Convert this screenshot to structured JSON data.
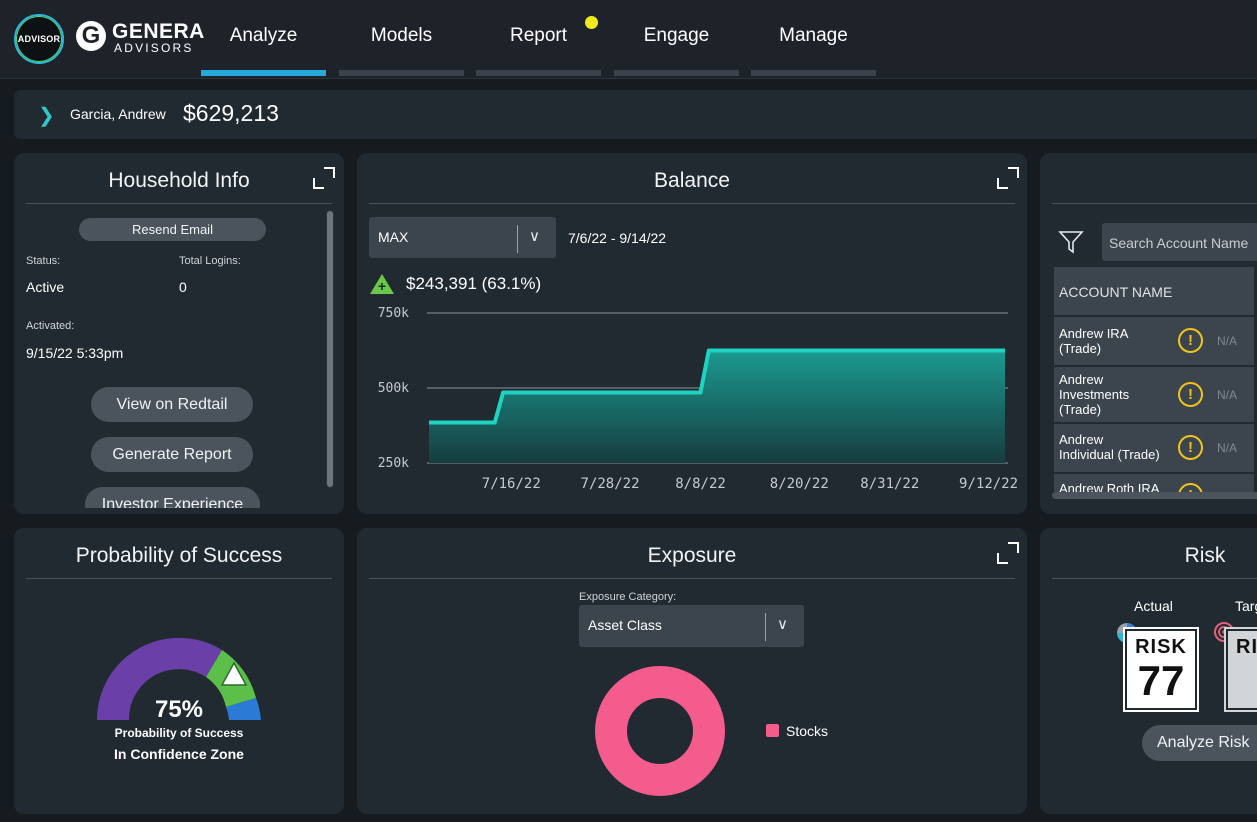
{
  "brand": {
    "advisor_badge": "ADVISOR",
    "logo_letter": "G",
    "name": "GENERA",
    "sub": "ADVISORS"
  },
  "nav": {
    "tabs": [
      {
        "label": "Analyze",
        "active": true
      },
      {
        "label": "Models",
        "active": false
      },
      {
        "label": "Report",
        "active": false,
        "notification": true
      },
      {
        "label": "Engage",
        "active": false
      },
      {
        "label": "Manage",
        "active": false
      }
    ]
  },
  "client": {
    "name": "Garcia, Andrew",
    "total_value": "$629,213"
  },
  "household": {
    "title": "Household Info",
    "resend_label": "Resend Email",
    "status_label": "Status:",
    "status_value": "Active",
    "logins_label": "Total Logins:",
    "logins_value": "0",
    "activated_label": "Activated:",
    "activated_value": "9/15/22 5:33pm",
    "buttons": [
      "View on Redtail",
      "Generate Report",
      "Investor Experience"
    ]
  },
  "balance": {
    "title": "Balance",
    "range_select": "MAX",
    "date_range": "7/6/22 - 9/14/22",
    "change": "$243,391 (63.1%)"
  },
  "chart_data": {
    "type": "area",
    "title": "Balance",
    "x": [
      "7/6/22",
      "7/14/22",
      "7/15/22",
      "7/16/22",
      "7/28/22",
      "8/8/22",
      "8/9/22",
      "8/10/22",
      "8/20/22",
      "8/31/22",
      "9/12/22",
      "9/14/22"
    ],
    "values": [
      385000,
      385000,
      485000,
      485000,
      485000,
      485000,
      625000,
      625000,
      625000,
      625000,
      625000,
      625000
    ],
    "yticks": [
      "250k",
      "500k",
      "750k"
    ],
    "xticks": [
      "7/16/22",
      "7/28/22",
      "8/8/22",
      "8/20/22",
      "8/31/22",
      "9/12/22"
    ],
    "ylim": [
      250000,
      750000
    ],
    "colors": {
      "line": "#1fd3c2",
      "fill_top": "#1a9a90",
      "fill_bottom": "#173c3f"
    }
  },
  "accounts": {
    "search_placeholder": "Search Account Name",
    "column_header": "ACCOUNT NAME",
    "rows": [
      {
        "name_l1": "Andrew IRA",
        "name_l2": "(Trade)",
        "name_l3": "",
        "value": "N/A"
      },
      {
        "name_l1": "Andrew",
        "name_l2": "Investments",
        "name_l3": "(Trade)",
        "value": "N/A"
      },
      {
        "name_l1": "Andrew",
        "name_l2": "Individual (Trade)",
        "name_l3": "",
        "value": "N/A"
      },
      {
        "name_l1": "Andrew Roth IRA",
        "name_l2": "",
        "name_l3": "",
        "value": ""
      }
    ]
  },
  "pos": {
    "title": "Probability of Success",
    "percent": "75%",
    "subtitle": "Probability of Success",
    "zone": "In Confidence Zone"
  },
  "exposure": {
    "title": "Exposure",
    "category_label": "Exposure Category:",
    "category_value": "Asset Class",
    "legend": [
      {
        "label": "Stocks",
        "color": "#f45c8d"
      }
    ]
  },
  "risk": {
    "title": "Risk",
    "actual_label": "Actual",
    "target_label": "Target",
    "badge_word": "RISK",
    "actual_score": "77",
    "target_badge_word": "RI",
    "analyze_label": "Analyze Risk"
  }
}
